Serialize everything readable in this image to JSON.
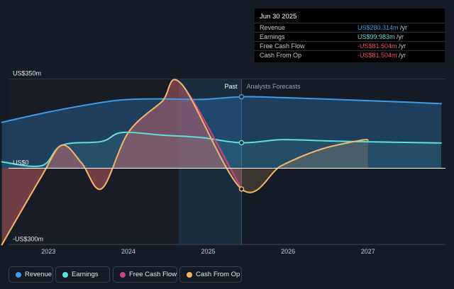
{
  "chart_data": {
    "type": "line",
    "x_ticks": [
      "2023",
      "2024",
      "2025",
      "2026",
      "2027"
    ],
    "y_ticks": [
      "US$350m",
      "US$0",
      "-US$300m"
    ],
    "ylim": [
      -300,
      350
    ],
    "past_label": "Past",
    "forecast_label": "Analysts Forecasts",
    "series": [
      {
        "name": "Revenue",
        "color": "#3d9be9",
        "points": [
          [
            "2022-06",
            180
          ],
          [
            "2022-12",
            215
          ],
          [
            "2023-06",
            245
          ],
          [
            "2023-12",
            268
          ],
          [
            "2024-06",
            272
          ],
          [
            "2024-12",
            270
          ],
          [
            "2025-06",
            280.314
          ],
          [
            "2025-12",
            277
          ],
          [
            "2026-06",
            272
          ],
          [
            "2026-12",
            266
          ],
          [
            "2027-06",
            260
          ],
          [
            "2027-12",
            253
          ]
        ]
      },
      {
        "name": "Earnings",
        "color": "#5fe0d6",
        "points": [
          [
            "2022-06",
            25
          ],
          [
            "2022-12",
            10
          ],
          [
            "2023-03",
            90
          ],
          [
            "2023-09",
            105
          ],
          [
            "2023-12",
            140
          ],
          [
            "2024-06",
            130
          ],
          [
            "2024-12",
            120
          ],
          [
            "2025-06",
            99.983
          ],
          [
            "2025-12",
            112
          ],
          [
            "2026-06",
            108
          ],
          [
            "2026-12",
            104
          ],
          [
            "2027-12",
            99
          ]
        ]
      },
      {
        "name": "Free Cash Flow",
        "color": "#c9457f",
        "points": [
          [
            "2022-06",
            -300
          ],
          [
            "2022-12",
            -30
          ],
          [
            "2023-03",
            90
          ],
          [
            "2023-06",
            20
          ],
          [
            "2023-09",
            -80
          ],
          [
            "2024-01",
            140
          ],
          [
            "2024-06",
            260
          ],
          [
            "2024-09",
            330
          ],
          [
            "2025-06",
            -81.504
          ]
        ]
      },
      {
        "name": "Cash From Op",
        "color": "#f2b56b",
        "points": [
          [
            "2022-06",
            -300
          ],
          [
            "2022-12",
            -30
          ],
          [
            "2023-03",
            90
          ],
          [
            "2023-06",
            20
          ],
          [
            "2023-09",
            -80
          ],
          [
            "2024-01",
            140
          ],
          [
            "2024-06",
            260
          ],
          [
            "2024-09",
            330
          ],
          [
            "2025-06",
            -81.504
          ],
          [
            "2025-12",
            10
          ],
          [
            "2026-06",
            75
          ],
          [
            "2026-12",
            110
          ],
          [
            "2027-01",
            110
          ]
        ]
      }
    ],
    "tooltip": {
      "date": "Jun 30 2025",
      "rows": [
        {
          "label": "Revenue",
          "value": "US$280.314m",
          "unit": "/yr",
          "color": "#3d9be9"
        },
        {
          "label": "Earnings",
          "value": "US$99.983m",
          "unit": "/yr",
          "color": "#5fe0d6"
        },
        {
          "label": "Free Cash Flow",
          "value": "-US$81.504m",
          "unit": "/yr",
          "color": "#ef4d5d"
        },
        {
          "label": "Cash From Op",
          "value": "-US$81.504m",
          "unit": "/yr",
          "color": "#ef4d5d"
        }
      ]
    }
  }
}
